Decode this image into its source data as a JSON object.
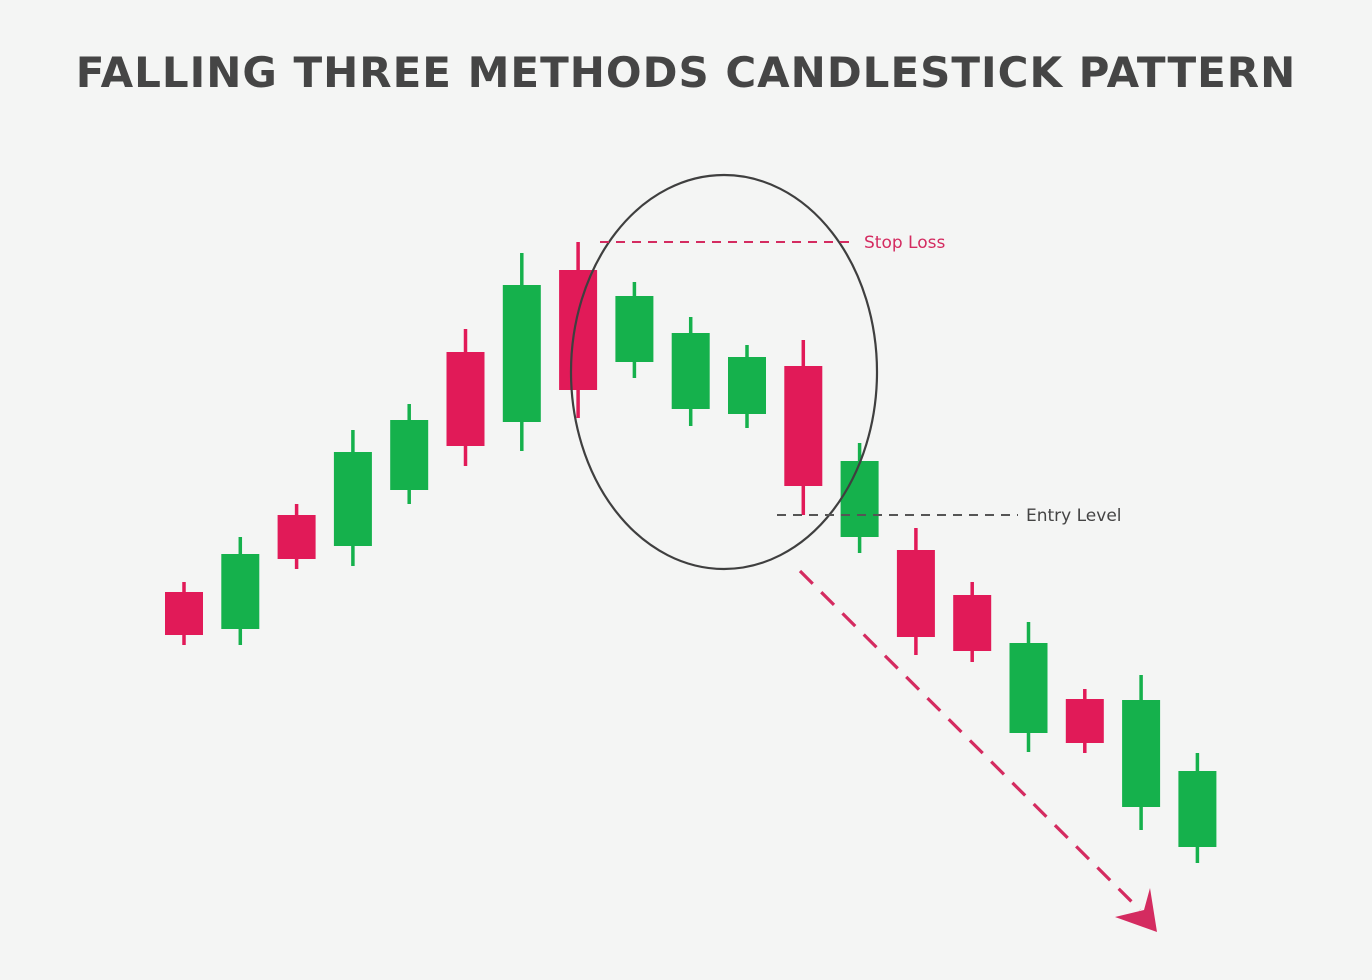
{
  "title": "FALLING THREE METHODS CANDLESTICK PATTERN",
  "chart_data": {
    "type": "candlestick",
    "title": "FALLING THREE METHODS CANDLESTICK PATTERN",
    "xlabel": "",
    "ylabel": "",
    "axes_visible": false,
    "grid": false,
    "price_scale": "unlabeled (relative units)",
    "colors": {
      "bullish": "#15b14c",
      "bearish": "#e11a58",
      "annotation": "#d42b60",
      "neutral": "#555555",
      "background": "#f4f5f4"
    },
    "candles": [
      {
        "direction": "bearish",
        "open": 388,
        "close": 345,
        "high": 398,
        "low": 335
      },
      {
        "direction": "bullish",
        "open": 351,
        "close": 426,
        "high": 443,
        "low": 335
      },
      {
        "direction": "bearish",
        "open": 465,
        "close": 421,
        "high": 476,
        "low": 411
      },
      {
        "direction": "bullish",
        "open": 434,
        "close": 528,
        "high": 550,
        "low": 414
      },
      {
        "direction": "bullish",
        "open": 490,
        "close": 560,
        "high": 576,
        "low": 476
      },
      {
        "direction": "bearish",
        "open": 628,
        "close": 534,
        "high": 651,
        "low": 514
      },
      {
        "direction": "bullish",
        "open": 558,
        "close": 695,
        "high": 727,
        "low": 529
      },
      {
        "direction": "bearish",
        "open": 710,
        "close": 590,
        "high": 738,
        "low": 562
      },
      {
        "direction": "bullish",
        "open": 618,
        "close": 684,
        "high": 698,
        "low": 602
      },
      {
        "direction": "bullish",
        "open": 571,
        "close": 647,
        "high": 663,
        "low": 554
      },
      {
        "direction": "bullish",
        "open": 566,
        "close": 623,
        "high": 635,
        "low": 552
      },
      {
        "direction": "bearish",
        "open": 614,
        "close": 494,
        "high": 640,
        "low": 465
      },
      {
        "direction": "bullish",
        "open": 443,
        "close": 519,
        "high": 537,
        "low": 427
      },
      {
        "direction": "bearish",
        "open": 430,
        "close": 343,
        "high": 452,
        "low": 325
      },
      {
        "direction": "bearish",
        "open": 385,
        "close": 329,
        "high": 398,
        "low": 318
      },
      {
        "direction": "bullish",
        "open": 247,
        "close": 337,
        "high": 358,
        "low": 228
      },
      {
        "direction": "bearish",
        "open": 281,
        "close": 237,
        "high": 291,
        "low": 227
      },
      {
        "direction": "bullish",
        "open": 173,
        "close": 280,
        "high": 305,
        "low": 150
      },
      {
        "direction": "bullish",
        "open": 133,
        "close": 209,
        "high": 227,
        "low": 117
      }
    ],
    "annotations": {
      "stop_loss": {
        "label": "Stop Loss",
        "price": 738
      },
      "entry_level": {
        "label": "Entry Level",
        "price": 465
      },
      "pattern_highlight": {
        "shape": "ellipse",
        "from_candle": 7,
        "to_candle": 11
      },
      "trend_arrow": {
        "style": "dashed",
        "direction": "down"
      }
    }
  }
}
